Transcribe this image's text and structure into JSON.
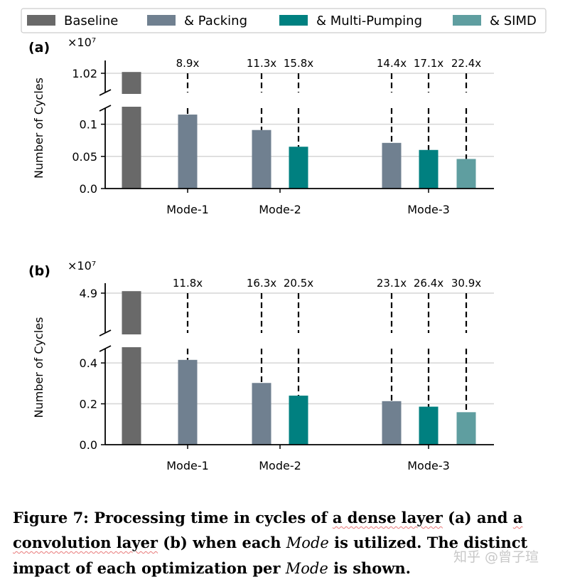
{
  "legend": [
    {
      "key": "baseline",
      "label": "Baseline",
      "color": "#696969"
    },
    {
      "key": "packing",
      "label": "& Packing",
      "color": "#708090"
    },
    {
      "key": "multi",
      "label": "& Multi-Pumping",
      "color": "#008080"
    },
    {
      "key": "simd",
      "label": "& SIMD",
      "color": "#5f9ea0"
    }
  ],
  "chart_data": [
    {
      "type": "bar",
      "panel": "(a)",
      "multiplier": "×10⁷",
      "ylabel": "Number of Cycles",
      "broken_axis": true,
      "top_range": [
        0.99,
        1.04
      ],
      "bottom_range": [
        0,
        0.125
      ],
      "top_ticks": [
        {
          "v": 1.02,
          "t": "1.02"
        }
      ],
      "bottom_ticks": [
        {
          "v": 0,
          "t": "0.0"
        },
        {
          "v": 0.05,
          "t": "0.05"
        },
        {
          "v": 0.1,
          "t": "0.1"
        }
      ],
      "groups": [
        "Mode-1",
        "Mode-2",
        "Mode-3"
      ],
      "bars": [
        {
          "series": "baseline",
          "value": 1.022
        },
        {
          "series": "packing",
          "group": "Mode-1",
          "value": 0.115,
          "speedup": "8.9x"
        },
        {
          "series": "packing",
          "group": "Mode-2",
          "value": 0.091,
          "speedup": "11.3x"
        },
        {
          "series": "multi",
          "group": "Mode-2",
          "value": 0.065,
          "speedup": "15.8x"
        },
        {
          "series": "packing",
          "group": "Mode-3",
          "value": 0.071,
          "speedup": "14.4x"
        },
        {
          "series": "multi",
          "group": "Mode-3",
          "value": 0.06,
          "speedup": "17.1x"
        },
        {
          "series": "simd",
          "group": "Mode-3",
          "value": 0.046,
          "speedup": "22.4x"
        }
      ]
    },
    {
      "type": "bar",
      "panel": "(b)",
      "multiplier": "×10⁷",
      "ylabel": "Number of Cycles",
      "broken_axis": true,
      "top_range": [
        4.7,
        4.95
      ],
      "bottom_range": [
        0,
        0.47
      ],
      "top_ticks": [
        {
          "v": 4.9,
          "t": "4.9"
        }
      ],
      "bottom_ticks": [
        {
          "v": 0,
          "t": "0.0"
        },
        {
          "v": 0.2,
          "t": "0.2"
        },
        {
          "v": 0.4,
          "t": "0.4"
        }
      ],
      "groups": [
        "Mode-1",
        "Mode-2",
        "Mode-3"
      ],
      "bars": [
        {
          "series": "baseline",
          "value": 4.91
        },
        {
          "series": "packing",
          "group": "Mode-1",
          "value": 0.415,
          "speedup": "11.8x"
        },
        {
          "series": "packing",
          "group": "Mode-2",
          "value": 0.302,
          "speedup": "16.3x"
        },
        {
          "series": "multi",
          "group": "Mode-2",
          "value": 0.24,
          "speedup": "20.5x"
        },
        {
          "series": "packing",
          "group": "Mode-3",
          "value": 0.213,
          "speedup": "23.1x"
        },
        {
          "series": "multi",
          "group": "Mode-3",
          "value": 0.186,
          "speedup": "26.4x"
        },
        {
          "series": "simd",
          "group": "Mode-3",
          "value": 0.159,
          "speedup": "30.9x"
        }
      ]
    }
  ],
  "caption": {
    "lead": "Figure 7:",
    "p1": " Processing time in cycles of ",
    "link1": "a dense layer",
    "p2": " (a) and ",
    "link2": "a convolution layer",
    "p3": " (b) when each ",
    "mode1": "Mode",
    "p4": " is utilized. The distinct impact of each optimization per ",
    "mode2": "Mode",
    "p5": " is shown."
  },
  "watermark": "知乎 @曾子瑄"
}
